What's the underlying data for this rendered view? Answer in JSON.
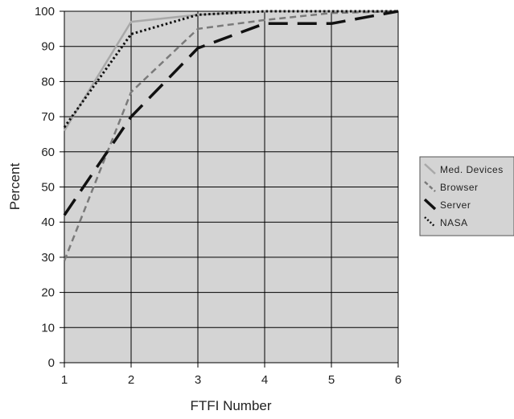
{
  "chart_data": {
    "type": "line",
    "title": "",
    "xlabel": "FTFI Number",
    "ylabel": "Percent",
    "x": [
      1,
      2,
      3,
      4,
      5,
      6
    ],
    "xlim": [
      1,
      6
    ],
    "ylim": [
      0,
      100
    ],
    "x_ticks": [
      "1",
      "2",
      "3",
      "4",
      "5",
      "6"
    ],
    "y_ticks": [
      "0",
      "10",
      "20",
      "30",
      "40",
      "50",
      "60",
      "70",
      "80",
      "90",
      "100"
    ],
    "grid": true,
    "legend_position": "right",
    "series": [
      {
        "name": "Med. Devices",
        "values": [
          66,
          97,
          99,
          100,
          100,
          100
        ],
        "color": "#a8a8a8",
        "dash": "solid"
      },
      {
        "name": "Browser",
        "values": [
          29,
          77,
          95,
          97.5,
          99.5,
          100
        ],
        "color": "#7a7a7a",
        "dash": "dashed"
      },
      {
        "name": "Server",
        "values": [
          42,
          70,
          89.5,
          96.5,
          96.5,
          100
        ],
        "color": "#111111",
        "dash": "long-dash"
      },
      {
        "name": "NASA",
        "values": [
          67,
          93.5,
          99,
          100,
          100,
          100
        ],
        "color": "#111111",
        "dash": "dotted"
      }
    ],
    "colors": {
      "plot_background": "#d4d4d4",
      "gridline": "#000000",
      "legend_background": "#d4d4d4"
    }
  }
}
